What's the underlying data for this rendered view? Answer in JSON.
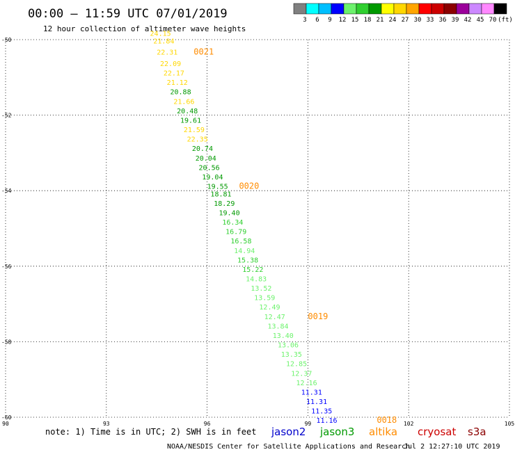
{
  "title": "00:00 – 11:59 UTC 07/01/2019",
  "subtitle": "12 hour collection of altimeter wave heights",
  "color_scale": {
    "colors": [
      "#808080",
      "#00ffff",
      "#00bfff",
      "#0000ff",
      "#6cf26c",
      "#2fcf2f",
      "#009900",
      "#ffff00",
      "#ffd700",
      "#ffa500",
      "#ff0000",
      "#cc0000",
      "#8b0000",
      "#9b009b",
      "#cc88ff",
      "#ff88ff",
      "#000000"
    ],
    "labels": [
      "3",
      "6",
      "9",
      "12",
      "15",
      "18",
      "21",
      "24",
      "27",
      "30",
      "33",
      "36",
      "39",
      "42",
      "45",
      "70",
      "(ft)"
    ]
  },
  "chart_data": {
    "type": "scatter",
    "xlim": [
      90,
      105
    ],
    "ylim": [
      -60,
      -50
    ],
    "x_ticks": [
      "90",
      "93",
      "96",
      "99",
      "102",
      "105"
    ],
    "y_ticks": [
      "-50",
      "-52",
      "-54",
      "-56",
      "-58",
      "-60"
    ],
    "grid": true,
    "points": [
      {
        "lon": 94.3,
        "lat": -49.9,
        "v": "24.15",
        "c": "#ffd700"
      },
      {
        "lon": 94.4,
        "lat": -50.1,
        "v": "21.84",
        "c": "#ffd700"
      },
      {
        "lon": 94.5,
        "lat": -50.4,
        "v": "22.31",
        "c": "#ffd700"
      },
      {
        "lon": 94.6,
        "lat": -50.7,
        "v": "22.09",
        "c": "#ffd700"
      },
      {
        "lon": 94.7,
        "lat": -50.95,
        "v": "22.17",
        "c": "#ffd700"
      },
      {
        "lon": 94.8,
        "lat": -51.2,
        "v": "21.12",
        "c": "#ffd700"
      },
      {
        "lon": 94.9,
        "lat": -51.45,
        "v": "20.88",
        "c": "#009900"
      },
      {
        "lon": 95.0,
        "lat": -51.7,
        "v": "21.66",
        "c": "#ffd700"
      },
      {
        "lon": 95.1,
        "lat": -51.95,
        "v": "20.48",
        "c": "#009900"
      },
      {
        "lon": 95.2,
        "lat": -52.2,
        "v": "19.61",
        "c": "#009900"
      },
      {
        "lon": 95.3,
        "lat": -52.45,
        "v": "21.59",
        "c": "#ffd700"
      },
      {
        "lon": 95.4,
        "lat": -52.7,
        "v": "22.35",
        "c": "#ffd700"
      },
      {
        "lon": 95.55,
        "lat": -52.95,
        "v": "20.74",
        "c": "#009900"
      },
      {
        "lon": 95.65,
        "lat": -53.2,
        "v": "20.04",
        "c": "#009900"
      },
      {
        "lon": 95.75,
        "lat": -53.45,
        "v": "20.56",
        "c": "#009900"
      },
      {
        "lon": 95.85,
        "lat": -53.7,
        "v": "19.04",
        "c": "#009900"
      },
      {
        "lon": 96.0,
        "lat": -53.95,
        "v": "19.55",
        "c": "#009900"
      },
      {
        "lon": 96.1,
        "lat": -54.15,
        "v": "18.81",
        "c": "#009900"
      },
      {
        "lon": 96.2,
        "lat": -54.4,
        "v": "18.29",
        "c": "#009900"
      },
      {
        "lon": 96.35,
        "lat": -54.65,
        "v": "19.40",
        "c": "#009900"
      },
      {
        "lon": 96.45,
        "lat": -54.9,
        "v": "16.34",
        "c": "#2fcf2f"
      },
      {
        "lon": 96.55,
        "lat": -55.15,
        "v": "16.79",
        "c": "#2fcf2f"
      },
      {
        "lon": 96.7,
        "lat": -55.4,
        "v": "16.58",
        "c": "#2fcf2f"
      },
      {
        "lon": 96.8,
        "lat": -55.65,
        "v": "14.94",
        "c": "#6cf26c"
      },
      {
        "lon": 96.9,
        "lat": -55.9,
        "v": "15.38",
        "c": "#2fcf2f"
      },
      {
        "lon": 97.05,
        "lat": -56.15,
        "v": "15.22",
        "c": "#2fcf2f"
      },
      {
        "lon": 97.15,
        "lat": -56.4,
        "v": "14.83",
        "c": "#6cf26c"
      },
      {
        "lon": 97.3,
        "lat": -56.65,
        "v": "13.52",
        "c": "#6cf26c"
      },
      {
        "lon": 97.4,
        "lat": -56.9,
        "v": "13.59",
        "c": "#6cf26c"
      },
      {
        "lon": 97.55,
        "lat": -57.15,
        "v": "12.49",
        "c": "#6cf26c"
      },
      {
        "lon": 97.7,
        "lat": -57.4,
        "v": "12.47",
        "c": "#6cf26c"
      },
      {
        "lon": 97.8,
        "lat": -57.65,
        "v": "13.84",
        "c": "#6cf26c"
      },
      {
        "lon": 97.95,
        "lat": -57.9,
        "v": "13.40",
        "c": "#6cf26c"
      },
      {
        "lon": 98.1,
        "lat": -58.15,
        "v": "13.06",
        "c": "#6cf26c"
      },
      {
        "lon": 98.2,
        "lat": -58.4,
        "v": "13.35",
        "c": "#6cf26c"
      },
      {
        "lon": 98.35,
        "lat": -58.65,
        "v": "12.85",
        "c": "#6cf26c"
      },
      {
        "lon": 98.5,
        "lat": -58.9,
        "v": "12.37",
        "c": "#6cf26c"
      },
      {
        "lon": 98.65,
        "lat": -59.15,
        "v": "12.16",
        "c": "#6cf26c"
      },
      {
        "lon": 98.8,
        "lat": -59.4,
        "v": "11.31",
        "c": "#0000ff"
      },
      {
        "lon": 98.95,
        "lat": -59.65,
        "v": "11.31",
        "c": "#0000ff"
      },
      {
        "lon": 99.1,
        "lat": -59.9,
        "v": "11.35",
        "c": "#0000ff"
      },
      {
        "lon": 99.25,
        "lat": -60.15,
        "v": "11.16",
        "c": "#0000ff"
      }
    ],
    "track_labels": [
      {
        "lon": 95.6,
        "lat": -50.4,
        "v": "0021"
      },
      {
        "lon": 96.95,
        "lat": -53.95,
        "v": "0020"
      },
      {
        "lon": 99.0,
        "lat": -57.4,
        "v": "0019"
      },
      {
        "lon": 101.05,
        "lat": -60.15,
        "v": "0018"
      }
    ]
  },
  "footer": {
    "note": "note:  1) Time is in UTC;  2) SWH is in feet",
    "satellites": [
      {
        "name": "jason2",
        "color": "#0000cc"
      },
      {
        "name": "jason3",
        "color": "#009900"
      },
      {
        "name": "altika",
        "color": "#ff8c00"
      },
      {
        "name": "cryosat",
        "color": "#cc0000"
      },
      {
        "name": "s3a",
        "color": "#8b0000"
      }
    ],
    "credit": "NOAA/NESDIS Center for Satellite Applications and Research",
    "timestamp": "Jul  2 12:27:10 UTC 2019"
  }
}
